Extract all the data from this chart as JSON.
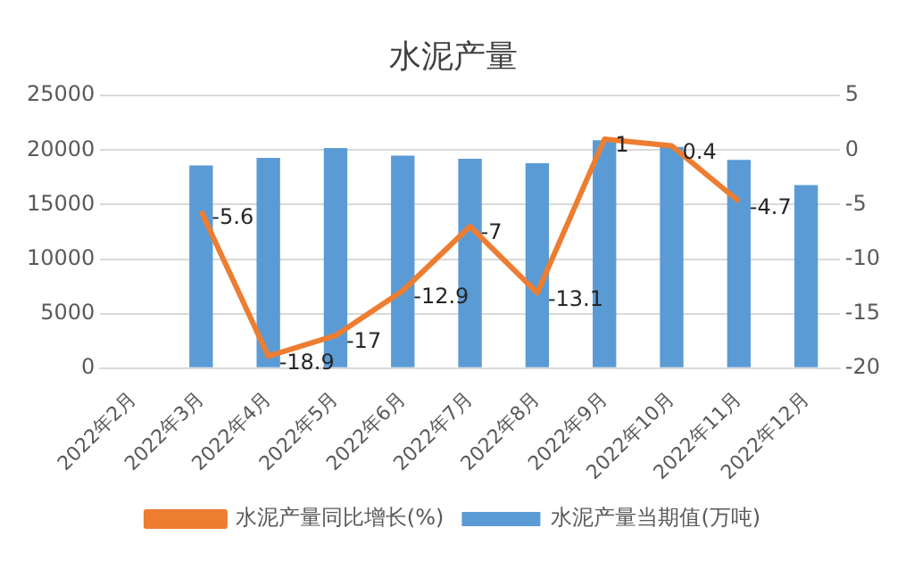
{
  "chart_data": {
    "type": "bar",
    "title": "水泥产量",
    "categories": [
      "2022年2月",
      "2022年3月",
      "2022年4月",
      "2022年5月",
      "2022年6月",
      "2022年7月",
      "2022年8月",
      "2022年9月",
      "2022年10月",
      "2022年11月",
      "2022年12月"
    ],
    "series": [
      {
        "name": "水泥产量当期值(万吨)",
        "color": "#5b9bd5",
        "values": [
          null,
          18600,
          19300,
          20200,
          19500,
          19200,
          18800,
          20900,
          20300,
          19100,
          16800
        ]
      },
      {
        "name": "水泥产量同比增长(%)",
        "type": "line",
        "axis": "y2",
        "color": "#ed7d31",
        "values": [
          null,
          -5.6,
          -18.9,
          -17,
          -12.9,
          -7,
          -13.1,
          1,
          0.4,
          -4.7,
          null
        ],
        "value_labels": [
          null,
          "-5.6",
          "-18.9",
          "-17",
          "-12.9",
          "-7",
          "-13.1",
          "1",
          "0.4",
          "-4.7",
          null
        ]
      }
    ],
    "ylim": [
      0,
      25000
    ],
    "yticks": [
      0,
      5000,
      10000,
      15000,
      20000,
      25000
    ],
    "y2lim": [
      -20,
      5
    ],
    "y2ticks": [
      -20,
      -15,
      -10,
      -5,
      0,
      5
    ],
    "grid": "y",
    "legend": "bottom",
    "marker": "none"
  }
}
